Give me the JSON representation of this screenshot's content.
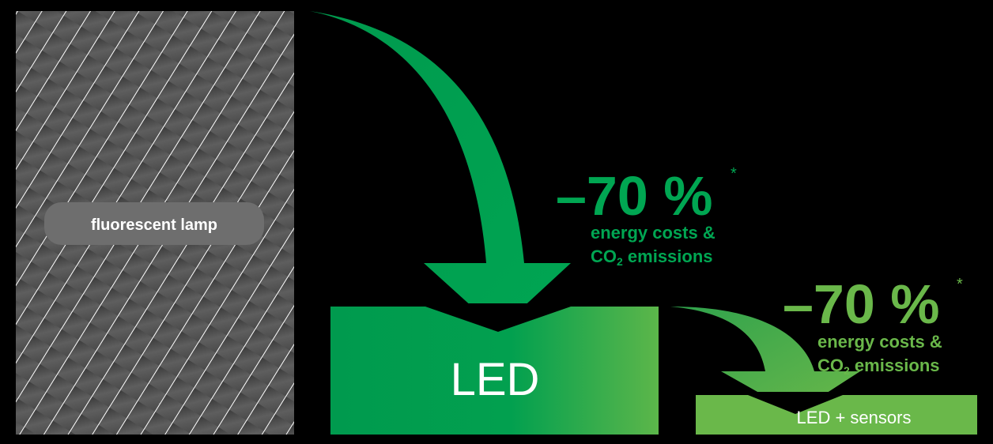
{
  "colors": {
    "background": "#000000",
    "lamp_panel": "#5a5a5a",
    "stripe": "#ffffff",
    "pill": "#6e6e6e",
    "green_dark": "#009a4e",
    "green_light": "#6ab84a",
    "text_white": "#ffffff"
  },
  "lamp": {
    "label": "fluorescent lamp"
  },
  "step1": {
    "percent": "–70 %",
    "asterisk": "*",
    "line1": "energy costs &",
    "line2_prefix": "CO",
    "line2_sub": "2",
    "line2_suffix": " emissions",
    "target_label": "LED"
  },
  "step2": {
    "percent": "–70 %",
    "asterisk": "*",
    "line1": "energy costs &",
    "line2_prefix": "CO",
    "line2_sub": "2",
    "line2_suffix": " emissions",
    "target_label": "LED + sensors"
  },
  "icons": {
    "arrow1": "curved-arrow-down-icon",
    "arrow2": "curved-arrow-down-icon"
  }
}
